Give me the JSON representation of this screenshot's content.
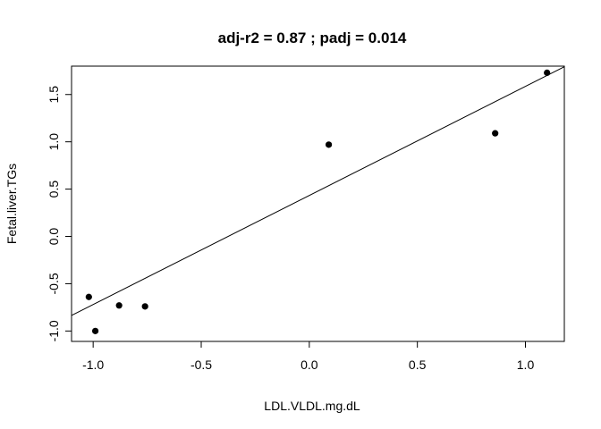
{
  "chart_data": {
    "type": "scatter",
    "title": "adj-r2 = 0.87 ; padj = 0.014",
    "xlabel": "LDL.VLDL.mg.dL",
    "ylabel": "Fetal.liver.TGs",
    "xlim": [
      -1.1,
      1.18
    ],
    "ylim": [
      -1.11,
      1.8
    ],
    "x_ticks": [
      -1.0,
      -0.5,
      0.0,
      0.5,
      1.0
    ],
    "x_tick_labels": [
      "-1.0",
      "-0.5",
      "0.0",
      "0.5",
      "1.0"
    ],
    "y_ticks": [
      -1.0,
      -0.5,
      0.0,
      0.5,
      1.0,
      1.5
    ],
    "y_tick_labels": [
      "-1.0",
      "-0.5",
      "0.0",
      "0.5",
      "1.0",
      "1.5"
    ],
    "grid": false,
    "points": [
      {
        "x": -1.02,
        "y": -0.64
      },
      {
        "x": -0.99,
        "y": -1.0
      },
      {
        "x": -0.88,
        "y": -0.73
      },
      {
        "x": -0.76,
        "y": -0.74
      },
      {
        "x": 0.09,
        "y": 0.97
      },
      {
        "x": 0.86,
        "y": 1.09
      },
      {
        "x": 1.1,
        "y": 1.73
      }
    ],
    "fit_line": {
      "intercept": 0.433,
      "slope": 1.153
    },
    "colors": {
      "points": "#000000",
      "line": "#000000",
      "axes": "#000000"
    }
  }
}
